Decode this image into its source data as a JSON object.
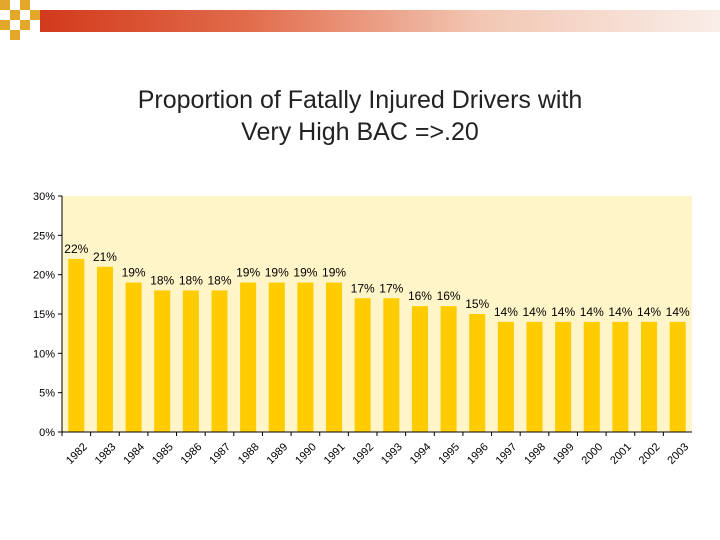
{
  "slide": {
    "title_line1": "Proportion of Fatally Injured Drivers with",
    "title_line2": "Very High BAC =>.20"
  },
  "colors": {
    "bar_fill": "#ffcc00",
    "plot_background": "#fff5c8",
    "header_band": "#d23a1c",
    "accent_squares": "#e3a72a"
  },
  "chart_data": {
    "type": "bar",
    "title": "",
    "xlabel": "",
    "ylabel": "",
    "categories": [
      "1982",
      "1983",
      "1984",
      "1985",
      "1986",
      "1987",
      "1988",
      "1989",
      "1990",
      "1991",
      "1992",
      "1993",
      "1994",
      "1995",
      "1996",
      "1997",
      "1998",
      "1999",
      "2000",
      "2001",
      "2002",
      "2003"
    ],
    "values": [
      22,
      21,
      19,
      18,
      18,
      18,
      19,
      19,
      19,
      19,
      17,
      17,
      16,
      16,
      15,
      14,
      14,
      14,
      14,
      14,
      14,
      14
    ],
    "value_labels": [
      "22%",
      "21%",
      "19%",
      "18%",
      "18%",
      "18%",
      "19%",
      "19%",
      "19%",
      "19%",
      "17%",
      "17%",
      "16%",
      "16%",
      "15%",
      "14%",
      "14%",
      "14%",
      "14%",
      "14%",
      "14%",
      "14%"
    ],
    "y_ticks": [
      0,
      5,
      10,
      15,
      20,
      25,
      30
    ],
    "y_tick_labels": [
      "0%",
      "5%",
      "10%",
      "15%",
      "20%",
      "25%",
      "30%"
    ],
    "ylim": [
      0,
      30
    ],
    "grid": false,
    "legend": "none"
  }
}
